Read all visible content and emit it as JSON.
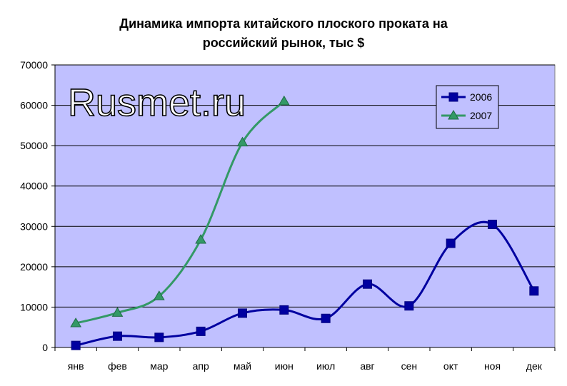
{
  "chart_data": {
    "type": "line",
    "title_lines": [
      "Динамика импорта китайского плоского проката на",
      "российский рынок, тыс $"
    ],
    "watermark": "Rusmet.ru",
    "categories": [
      "янв",
      "фев",
      "мар",
      "апр",
      "май",
      "июн",
      "июл",
      "авг",
      "сен",
      "окт",
      "ноя",
      "дек"
    ],
    "ylim": [
      0,
      70000
    ],
    "yticks": [
      "0",
      "10000",
      "20000",
      "30000",
      "40000",
      "50000",
      "60000",
      "70000"
    ],
    "grid": true,
    "legend_position": "top-right",
    "series": [
      {
        "name": "2006",
        "color": "#0000a0",
        "marker": "square",
        "values": [
          500,
          2800,
          2500,
          4000,
          8500,
          9300,
          7200,
          15700,
          10300,
          25800,
          30500,
          14000
        ]
      },
      {
        "name": "2007",
        "color": "#339966",
        "marker": "triangle",
        "values": [
          6000,
          8600,
          12700,
          26700,
          50800,
          61000,
          null,
          null,
          null,
          null,
          null,
          null
        ]
      }
    ],
    "plot_background": "#c0c0ff"
  }
}
